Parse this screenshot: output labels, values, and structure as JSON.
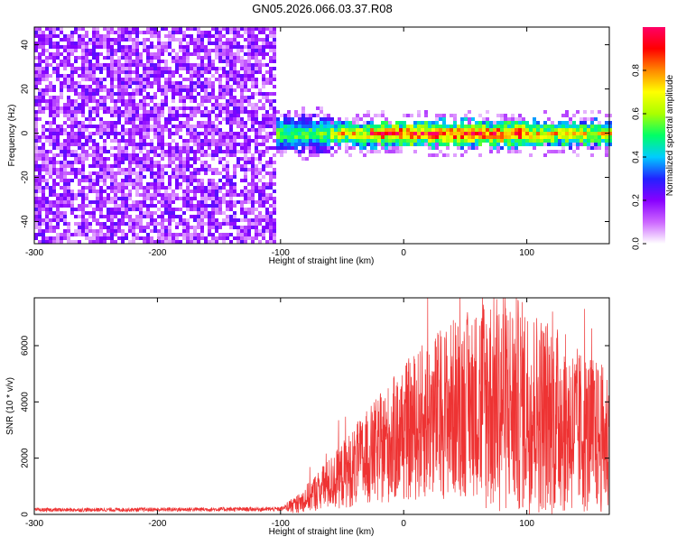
{
  "title": "GN05.2026.066.03.37.R08",
  "chart_data": [
    {
      "type": "heatmap",
      "name": "spectrogram",
      "xlabel": "Height of straight line (km)",
      "ylabel": "Frequency (Hz)",
      "xlim": [
        -300,
        167
      ],
      "ylim": [
        -50,
        48
      ],
      "xticks": [
        -300,
        -200,
        -100,
        0,
        100
      ],
      "yticks": [
        -40,
        -20,
        0,
        20,
        40
      ],
      "noise_region_km": [
        -300,
        -106
      ],
      "signal_band_hz": [
        -4,
        4
      ],
      "colorbar": {
        "label": "Normalized spectral amplitude",
        "range": [
          0,
          1
        ],
        "ticks": [
          0.0,
          0.2,
          0.4,
          0.6,
          0.8
        ],
        "tick_labels": [
          "0.0",
          "0.2",
          "0.4",
          "0.6",
          "0.8"
        ],
        "colors": [
          "#ffffff",
          "#cc66ff",
          "#8800ff",
          "#2222ff",
          "#00ccff",
          "#00ff66",
          "#aaff00",
          "#ffff00",
          "#ff8800",
          "#ff0000",
          "#ff0066"
        ]
      }
    },
    {
      "type": "line",
      "name": "snr",
      "xlabel": "Height of straight line (km)",
      "ylabel": "SNR (10 * v/v)",
      "xlim": [
        -300,
        167
      ],
      "ylim": [
        0,
        7700
      ],
      "xticks": [
        -300,
        -200,
        -100,
        0,
        100
      ],
      "yticks": [
        0,
        2000,
        4000,
        6000
      ],
      "color": "#ee3333",
      "envelope": {
        "x": [
          -300,
          -100,
          -85,
          -75,
          -60,
          -40,
          -20,
          0,
          20,
          40,
          60,
          80,
          100,
          120,
          140,
          167
        ],
        "y": [
          150,
          180,
          400,
          700,
          1100,
          1700,
          2300,
          2900,
          3400,
          3800,
          4000,
          4000,
          3800,
          3500,
          3000,
          2600
        ]
      }
    }
  ]
}
